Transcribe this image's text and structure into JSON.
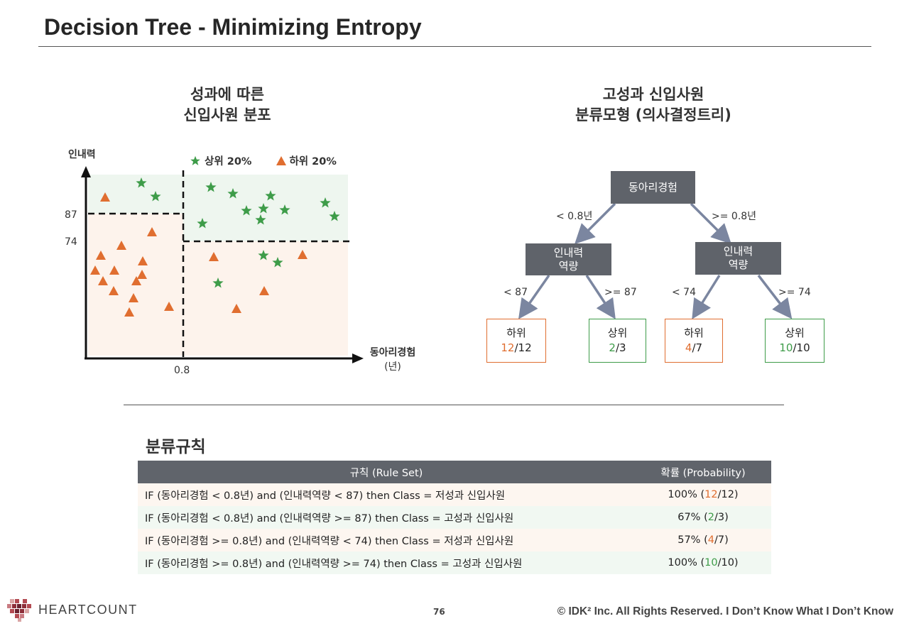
{
  "page": {
    "title": "Decision Tree - Minimizing Entropy",
    "page_number": "76",
    "copyright": "© IDK² Inc. All Rights Reserved.  I Don’t Know What I Don’t Know",
    "logo_text": "HEARTCOUNT"
  },
  "scatter": {
    "title_line1": "성과에 따른",
    "title_line2": "신입사원 분포",
    "ylabel": "인내력",
    "xlabel_line1": "동아리경험",
    "xlabel_line2": "(년)",
    "y_tick_high": "87",
    "y_tick_low": "74",
    "x_tick": "0.8",
    "legend_top": "상위 20%",
    "legend_bottom": "하위 20%"
  },
  "tree": {
    "title_line1": "고성과 신입사원",
    "title_line2": "분류모형 (의사결정트리)",
    "root": "동아리경험",
    "root_left_edge": "< 0.8년",
    "root_right_edge": ">= 0.8년",
    "left_node_line1": "인내력",
    "left_node_line2": "역량",
    "right_node_line1": "인내력",
    "right_node_line2": "역량",
    "ll_edge": "< 87",
    "lr_edge": ">= 87",
    "rl_edge": "< 74",
    "rr_edge": ">= 74",
    "leaf1_label": "하위",
    "leaf1_num": "12",
    "leaf1_den": "/12",
    "leaf2_label": "상위",
    "leaf2_num": "2",
    "leaf2_den": "/3",
    "leaf3_label": "하위",
    "leaf3_num": "4",
    "leaf3_den": "/7",
    "leaf4_label": "상위",
    "leaf4_num": "10",
    "leaf4_den": "/10"
  },
  "rules": {
    "section_title": "분류규칙",
    "col_rule": "규칙 (Rule Set)",
    "col_prob": "확률 (Probability)",
    "rows": [
      {
        "rule": "IF (동아리경험 < 0.8년) and (인내력역량 < 87) then Class = 저성과 신입사원",
        "pct": "100% (",
        "num": "12",
        "den": "/12)"
      },
      {
        "rule": "IF (동아리경험 < 0.8년) and (인내력역량 >= 87) then Class = 고성과 신입사원",
        "pct": "67% (",
        "num": "2",
        "den": "/3)"
      },
      {
        "rule": "IF (동아리경험 >= 0.8년) and (인내력역량 < 74) then Class = 저성과 신입사원",
        "pct": "57% (",
        "num": "4",
        "den": "/7)"
      },
      {
        "rule": "IF (동아리경험 >= 0.8년) and (인내력역량 >= 74) then Class = 고성과 신입사원",
        "pct": "100% (",
        "num": "10",
        "den": "/10)"
      }
    ]
  },
  "colors": {
    "orange": "#e06e30",
    "green": "#3e9c49",
    "node_gray": "#5f636a",
    "edge_blue": "#7b86a0"
  },
  "icons": {
    "star": "star-marker-icon",
    "triangle": "triangle-marker-icon"
  }
}
